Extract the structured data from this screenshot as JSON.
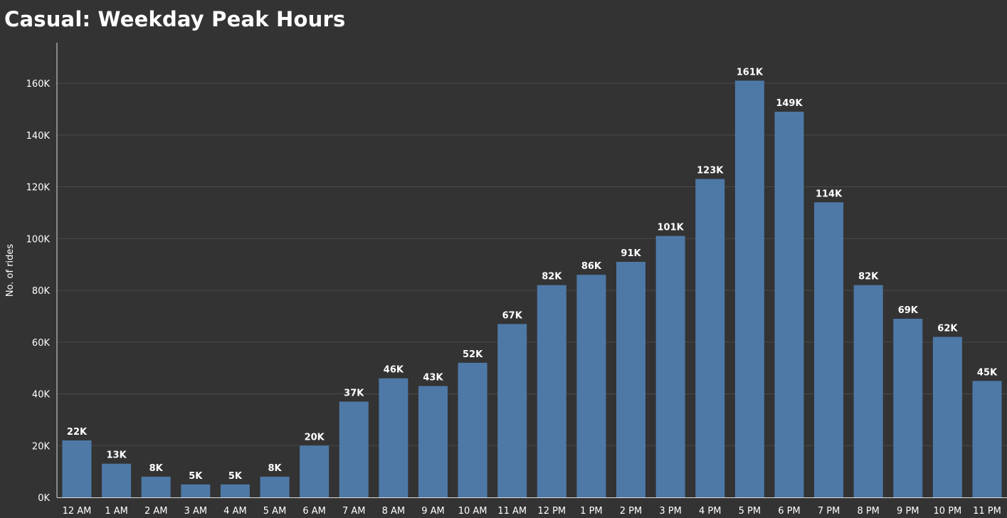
{
  "chart_data": {
    "type": "bar",
    "title": "Casual: Weekday Peak Hours",
    "xlabel": "",
    "ylabel": "No. of rides",
    "ylim": [
      0,
      175000
    ],
    "yticks": [
      0,
      20000,
      40000,
      60000,
      80000,
      100000,
      120000,
      140000,
      160000
    ],
    "ytick_labels": [
      "0K",
      "20K",
      "40K",
      "60K",
      "80K",
      "100K",
      "120K",
      "140K",
      "160K"
    ],
    "grid": true,
    "bar_color": "#4e79a7",
    "background": "#333333",
    "categories": [
      "12 AM",
      "1 AM",
      "2 AM",
      "3 AM",
      "4 AM",
      "5 AM",
      "6 AM",
      "7 AM",
      "8 AM",
      "9 AM",
      "10 AM",
      "11 AM",
      "12 PM",
      "1 PM",
      "2 PM",
      "3 PM",
      "4 PM",
      "5 PM",
      "6 PM",
      "7 PM",
      "8 PM",
      "9 PM",
      "10 PM",
      "11 PM"
    ],
    "values": [
      22000,
      13000,
      8000,
      5000,
      5000,
      8000,
      20000,
      37000,
      46000,
      43000,
      52000,
      67000,
      82000,
      86000,
      91000,
      101000,
      123000,
      161000,
      149000,
      114000,
      82000,
      69000,
      62000,
      45000
    ],
    "data_labels": [
      "22K",
      "13K",
      "8K",
      "5K",
      "5K",
      "8K",
      "20K",
      "37K",
      "46K",
      "43K",
      "52K",
      "67K",
      "82K",
      "86K",
      "91K",
      "101K",
      "123K",
      "161K",
      "149K",
      "114K",
      "82K",
      "69K",
      "62K",
      "45K"
    ]
  }
}
